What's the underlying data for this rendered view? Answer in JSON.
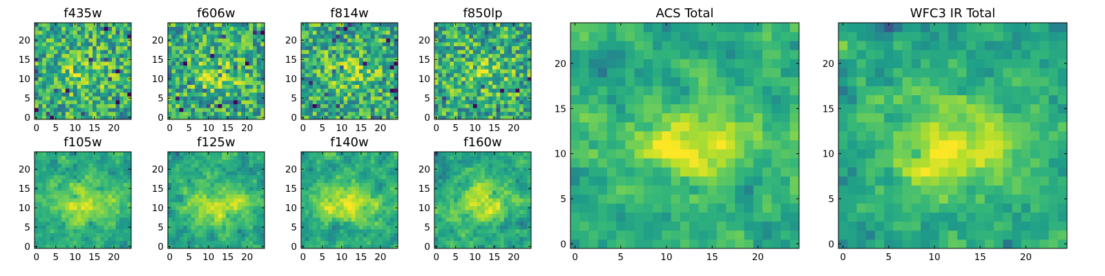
{
  "chart_data": [
    {
      "type": "heatmap",
      "title": "f435w",
      "grid": [
        25,
        25
      ],
      "xticks": [
        "0",
        "5",
        "10",
        "15",
        "20"
      ],
      "yticks": [
        "0",
        "5",
        "10",
        "15",
        "20"
      ],
      "colormap": "viridis"
    },
    {
      "type": "heatmap",
      "title": "f606w",
      "grid": [
        25,
        25
      ],
      "xticks": [
        "0",
        "5",
        "10",
        "15",
        "20"
      ],
      "yticks": [
        "0",
        "5",
        "10",
        "15",
        "20"
      ],
      "colormap": "viridis"
    },
    {
      "type": "heatmap",
      "title": "f814w",
      "grid": [
        25,
        25
      ],
      "xticks": [
        "0",
        "5",
        "10",
        "15",
        "20"
      ],
      "yticks": [
        "0",
        "5",
        "10",
        "15",
        "20"
      ],
      "colormap": "viridis"
    },
    {
      "type": "heatmap",
      "title": "f850lp",
      "grid": [
        25,
        25
      ],
      "xticks": [
        "0",
        "5",
        "10",
        "15",
        "20"
      ],
      "yticks": [
        "0",
        "5",
        "10",
        "15",
        "20"
      ],
      "colormap": "viridis"
    },
    {
      "type": "heatmap",
      "title": "f105w",
      "grid": [
        25,
        25
      ],
      "xticks": [
        "0",
        "5",
        "10",
        "15",
        "20"
      ],
      "yticks": [
        "0",
        "5",
        "10",
        "15",
        "20"
      ],
      "colormap": "viridis"
    },
    {
      "type": "heatmap",
      "title": "f125w",
      "grid": [
        25,
        25
      ],
      "xticks": [
        "0",
        "5",
        "10",
        "15",
        "20"
      ],
      "yticks": [
        "0",
        "5",
        "10",
        "15",
        "20"
      ],
      "colormap": "viridis"
    },
    {
      "type": "heatmap",
      "title": "f140w",
      "grid": [
        25,
        25
      ],
      "xticks": [
        "0",
        "5",
        "10",
        "15",
        "20"
      ],
      "yticks": [
        "0",
        "5",
        "10",
        "15",
        "20"
      ],
      "colormap": "viridis"
    },
    {
      "type": "heatmap",
      "title": "f160w",
      "grid": [
        25,
        25
      ],
      "xticks": [
        "0",
        "5",
        "10",
        "15",
        "20"
      ],
      "yticks": [
        "0",
        "5",
        "10",
        "15",
        "20"
      ],
      "colormap": "viridis"
    },
    {
      "type": "heatmap",
      "title": "ACS Total",
      "grid": [
        25,
        25
      ],
      "xticks": [
        "0",
        "5",
        "10",
        "15",
        "20"
      ],
      "yticks": [
        "0",
        "5",
        "10",
        "15",
        "20"
      ],
      "colormap": "viridis"
    },
    {
      "type": "heatmap",
      "title": "WFC3 IR Total",
      "grid": [
        25,
        25
      ],
      "xticks": [
        "0",
        "5",
        "10",
        "15",
        "20"
      ],
      "yticks": [
        "0",
        "5",
        "10",
        "15",
        "20"
      ],
      "colormap": "viridis"
    }
  ],
  "colors": {
    "background": "#ffffff",
    "frame": "#000000",
    "cmap_low": "#440154",
    "cmap_high": "#fde725"
  }
}
